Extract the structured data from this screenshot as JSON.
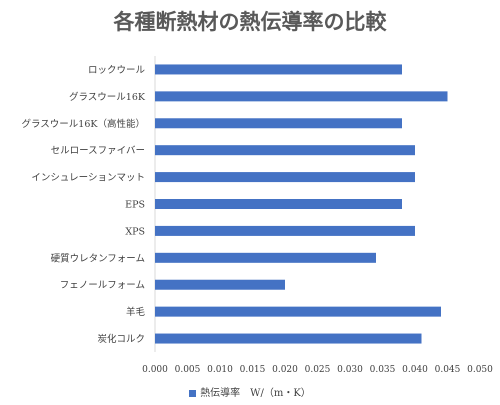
{
  "chart_data": {
    "type": "bar",
    "orientation": "horizontal",
    "title": "各種断熱材の熱伝導率の比較",
    "categories": [
      "ロックウール",
      "グラスウール16K",
      "グラスウール16K（高性能）",
      "セルロースファイバー",
      "インシュレーションマット",
      "EPS",
      "XPS",
      "硬質ウレタンフォーム",
      "フェノールフォーム",
      "羊毛",
      "炭化コルク"
    ],
    "series": [
      {
        "name": "熱伝導率　W/（m・K）",
        "color": "#4472c4",
        "values": [
          0.038,
          0.045,
          0.038,
          0.04,
          0.04,
          0.038,
          0.04,
          0.034,
          0.02,
          0.044,
          0.041
        ]
      }
    ],
    "xlim": [
      0,
      0.05
    ],
    "x_ticks": [
      "0.000",
      "0.005",
      "0.010",
      "0.015",
      "0.020",
      "0.025",
      "0.030",
      "0.035",
      "0.040",
      "0.045",
      "0.050"
    ],
    "grid": false,
    "legend_position": "bottom"
  }
}
